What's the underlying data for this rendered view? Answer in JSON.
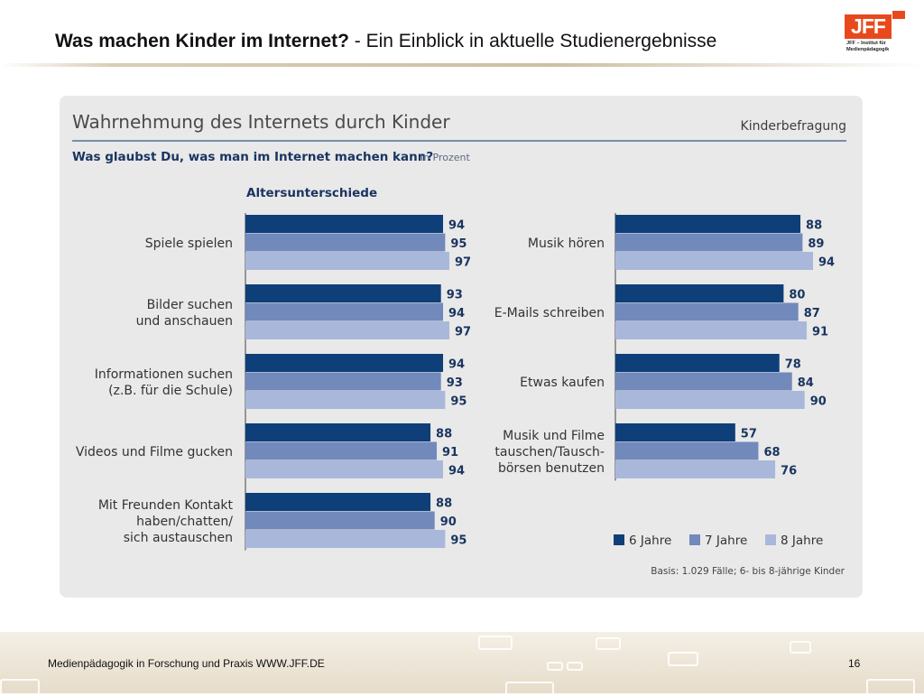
{
  "slide": {
    "title_bold": "Was machen Kinder im Internet?",
    "title_rest": " - Ein Einblick in aktuelle Studienergebnisse",
    "logo_text": "JFF",
    "logo_subtitle_1": "JFF – Institut für",
    "logo_subtitle_2": "Medienpädagogik",
    "footer_text": "Medienpädagogik in Forschung und Praxis WWW.JFF.DE",
    "page_number": "16"
  },
  "chart_data": {
    "type": "bar",
    "orientation": "horizontal",
    "title": "Wahrnehmung des Internets durch Kinder",
    "tag": "Kinderbefragung",
    "question": "Was glaubst Du, was man im Internet machen kann?",
    "unit_note": "in Prozent",
    "section_label": "Altersunterschiede",
    "basis": "Basis: 1.029 Fälle; 6- bis 8-jährige Kinder",
    "legend_position": "bottom-right",
    "series": [
      {
        "name": "6 Jahre",
        "color": "#0e3f78"
      },
      {
        "name": "7 Jahre",
        "color": "#7189bb"
      },
      {
        "name": "8 Jahre",
        "color": "#a9b8da"
      }
    ],
    "groups": [
      {
        "label": [
          "Spiele spielen"
        ],
        "values": [
          94,
          95,
          97
        ]
      },
      {
        "label": [
          "Bilder suchen",
          "und anschauen"
        ],
        "values": [
          93,
          94,
          97
        ]
      },
      {
        "label": [
          "Informationen suchen",
          "(z.B. für die Schule)"
        ],
        "values": [
          94,
          93,
          95
        ]
      },
      {
        "label": [
          "Videos und Filme gucken"
        ],
        "values": [
          88,
          91,
          94
        ]
      },
      {
        "label": [
          "Mit Freunden Kontakt",
          "haben/chatten/",
          "sich austauschen"
        ],
        "values": [
          88,
          90,
          95
        ]
      },
      {
        "label": [
          "Musik hören"
        ],
        "values": [
          88,
          89,
          94
        ]
      },
      {
        "label": [
          "E-Mails schreiben"
        ],
        "values": [
          80,
          87,
          91
        ]
      },
      {
        "label": [
          "Etwas kaufen"
        ],
        "values": [
          78,
          84,
          90
        ]
      },
      {
        "label": [
          "Musik und Filme",
          "tauschen/Tausch-",
          "börsen benutzen"
        ],
        "values": [
          57,
          68,
          76
        ]
      }
    ]
  }
}
